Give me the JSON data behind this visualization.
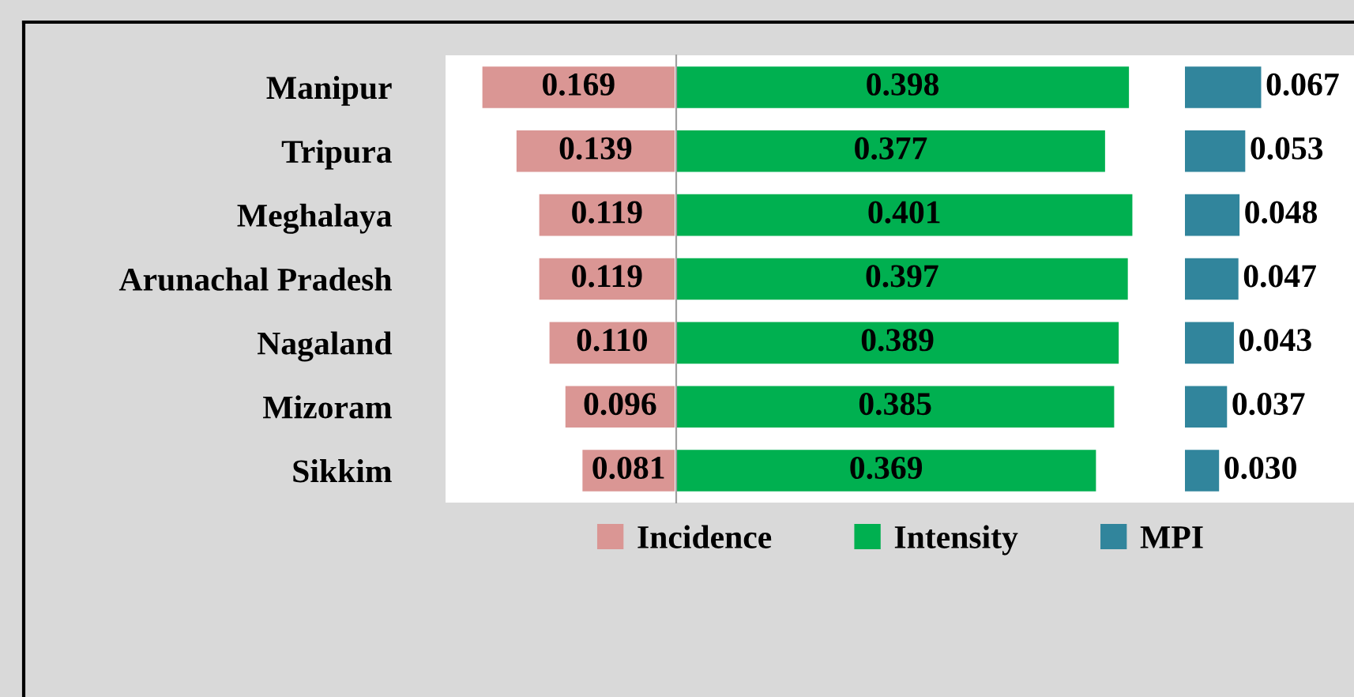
{
  "chart_data": [
    {
      "type": "bar",
      "orientation": "horizontal",
      "categories": [
        "Manipur",
        "Tripura",
        "Meghalaya",
        "Arunachal Pradesh",
        "Nagaland",
        "Mizoram",
        "Sikkim"
      ],
      "legend": "bottom",
      "series": [
        {
          "name": "Incidence",
          "color": "#da9694",
          "values": [
            0.169,
            0.139,
            0.119,
            0.119,
            0.11,
            0.096,
            0.081
          ],
          "value_labels": [
            "0.169",
            "0.139",
            "0.119",
            "0.119",
            "0.110",
            "0.096",
            "0.081"
          ]
        }
      ]
    },
    {
      "type": "bar",
      "orientation": "horizontal",
      "categories": [
        null,
        null,
        null,
        null,
        null,
        null,
        null
      ],
      "legend": "bottom",
      "series": [
        {
          "name": "Intensity",
          "color": "#00b050",
          "values": [
            0.398,
            0.377,
            0.401,
            0.397,
            0.389,
            0.385,
            0.369
          ],
          "value_labels": [
            "0.398",
            "0.377",
            "0.401",
            "0.397",
            "0.389",
            "0.385",
            "0.369"
          ]
        }
      ]
    },
    {
      "type": "bar",
      "orientation": "horizontal",
      "categories": [
        null,
        null,
        null,
        null,
        null,
        null,
        null
      ],
      "legend": "bottom",
      "series": [
        {
          "name": "MPI",
          "color": "#31859c",
          "values": [
            0.067,
            0.053,
            0.048,
            0.047,
            0.043,
            0.037,
            0.03
          ],
          "value_labels": [
            "0.067",
            "0.053",
            "0.048",
            "0.047",
            "0.043",
            "0.037",
            "0.030"
          ]
        }
      ]
    }
  ]
}
